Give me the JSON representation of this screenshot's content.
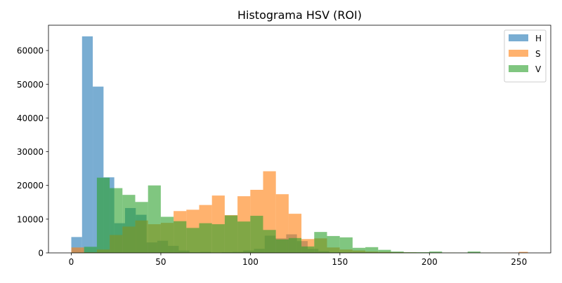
{
  "chart_data": {
    "type": "histogram",
    "title": "Histograma HSV (ROI)",
    "xlabel": "",
    "ylabel": "",
    "xlim": [
      -12.75,
      267.75
    ],
    "ylim": [
      0,
      67500
    ],
    "x_ticks": [
      0,
      50,
      100,
      150,
      200,
      250
    ],
    "y_ticks": [
      0,
      10000,
      20000,
      30000,
      40000,
      50000,
      60000
    ],
    "grid": false,
    "legend_position": "top-right",
    "bin_width": 7.14,
    "series": [
      {
        "name": "H",
        "color": "#1f77b4",
        "opacity": 0.6,
        "bins": [
          {
            "x0": 0,
            "x1": 6,
            "value": 4700
          },
          {
            "x0": 6,
            "x1": 12,
            "value": 64200
          },
          {
            "x0": 12,
            "x1": 18,
            "value": 49300
          },
          {
            "x0": 18,
            "x1": 24,
            "value": 22400
          },
          {
            "x0": 24,
            "x1": 30,
            "value": 8800
          },
          {
            "x0": 30,
            "x1": 36,
            "value": 13300
          },
          {
            "x0": 36,
            "x1": 42,
            "value": 11300
          },
          {
            "x0": 42,
            "x1": 48,
            "value": 3100
          },
          {
            "x0": 48,
            "x1": 54,
            "value": 3600
          },
          {
            "x0": 54,
            "x1": 60,
            "value": 2100
          },
          {
            "x0": 60,
            "x1": 66,
            "value": 700
          },
          {
            "x0": 66,
            "x1": 72,
            "value": 200
          },
          {
            "x0": 72,
            "x1": 78,
            "value": 300
          },
          {
            "x0": 78,
            "x1": 84,
            "value": 100
          },
          {
            "x0": 84,
            "x1": 90,
            "value": 200
          },
          {
            "x0": 90,
            "x1": 96,
            "value": 300
          },
          {
            "x0": 96,
            "x1": 102,
            "value": 700
          },
          {
            "x0": 102,
            "x1": 108,
            "value": 1200
          },
          {
            "x0": 108,
            "x1": 114,
            "value": 5100
          },
          {
            "x0": 114,
            "x1": 120,
            "value": 4300
          },
          {
            "x0": 120,
            "x1": 126,
            "value": 5500
          },
          {
            "x0": 126,
            "x1": 132,
            "value": 3500
          },
          {
            "x0": 132,
            "x1": 138,
            "value": 1200
          },
          {
            "x0": 138,
            "x1": 144,
            "value": 500
          },
          {
            "x0": 144,
            "x1": 150,
            "value": 200
          },
          {
            "x0": 150,
            "x1": 156,
            "value": 100
          },
          {
            "x0": 156,
            "x1": 162,
            "value": 100
          },
          {
            "x0": 162,
            "x1": 168,
            "value": 100
          },
          {
            "x0": 168,
            "x1": 174,
            "value": 50
          }
        ]
      },
      {
        "name": "S",
        "color": "#ff7f0e",
        "opacity": 0.6,
        "bins": [
          {
            "x0": 0,
            "x1": 7.14,
            "value": 1600
          },
          {
            "x0": 7.14,
            "x1": 14.28,
            "value": 200
          },
          {
            "x0": 14.28,
            "x1": 21.42,
            "value": 1000
          },
          {
            "x0": 21.42,
            "x1": 28.56,
            "value": 5300
          },
          {
            "x0": 28.56,
            "x1": 35.7,
            "value": 7800
          },
          {
            "x0": 35.7,
            "x1": 42.84,
            "value": 9600
          },
          {
            "x0": 42.84,
            "x1": 49.98,
            "value": 8500
          },
          {
            "x0": 49.98,
            "x1": 57.12,
            "value": 8900
          },
          {
            "x0": 57.12,
            "x1": 64.26,
            "value": 12400
          },
          {
            "x0": 64.26,
            "x1": 71.4,
            "value": 12800
          },
          {
            "x0": 71.4,
            "x1": 78.54,
            "value": 14200
          },
          {
            "x0": 78.54,
            "x1": 85.68,
            "value": 17000
          },
          {
            "x0": 85.68,
            "x1": 92.82,
            "value": 11200
          },
          {
            "x0": 92.82,
            "x1": 99.96,
            "value": 16800
          },
          {
            "x0": 99.96,
            "x1": 107.1,
            "value": 18700
          },
          {
            "x0": 107.1,
            "x1": 114.24,
            "value": 24200
          },
          {
            "x0": 114.24,
            "x1": 121.38,
            "value": 17400
          },
          {
            "x0": 121.38,
            "x1": 128.52,
            "value": 11600
          },
          {
            "x0": 128.52,
            "x1": 135.66,
            "value": 4100
          },
          {
            "x0": 135.66,
            "x1": 142.8,
            "value": 4300
          },
          {
            "x0": 142.8,
            "x1": 149.94,
            "value": 1600
          },
          {
            "x0": 149.94,
            "x1": 157.08,
            "value": 1000
          },
          {
            "x0": 157.08,
            "x1": 164.22,
            "value": 700
          },
          {
            "x0": 164.22,
            "x1": 171.36,
            "value": 400
          },
          {
            "x0": 171.36,
            "x1": 178.5,
            "value": 300
          },
          {
            "x0": 178.5,
            "x1": 185.64,
            "value": 200
          },
          {
            "x0": 185.64,
            "x1": 192.78,
            "value": 150
          },
          {
            "x0": 192.78,
            "x1": 199.92,
            "value": 100
          },
          {
            "x0": 199.92,
            "x1": 207.06,
            "value": 100
          },
          {
            "x0": 207.06,
            "x1": 214.2,
            "value": 100
          },
          {
            "x0": 214.2,
            "x1": 221.34,
            "value": 50
          },
          {
            "x0": 221.34,
            "x1": 228.48,
            "value": 50
          },
          {
            "x0": 228.48,
            "x1": 235.62,
            "value": 50
          },
          {
            "x0": 235.62,
            "x1": 242.76,
            "value": 50
          },
          {
            "x0": 242.76,
            "x1": 249.9,
            "value": 100
          },
          {
            "x0": 249.9,
            "x1": 255,
            "value": 300
          }
        ]
      },
      {
        "name": "V",
        "color": "#2ca02c",
        "opacity": 0.6,
        "bins": [
          {
            "x0": 0,
            "x1": 7.14,
            "value": 100
          },
          {
            "x0": 7.14,
            "x1": 14.28,
            "value": 1800
          },
          {
            "x0": 14.28,
            "x1": 21.42,
            "value": 22300
          },
          {
            "x0": 21.42,
            "x1": 28.56,
            "value": 19200
          },
          {
            "x0": 28.56,
            "x1": 35.7,
            "value": 17200
          },
          {
            "x0": 35.7,
            "x1": 42.84,
            "value": 15100
          },
          {
            "x0": 42.84,
            "x1": 49.98,
            "value": 20000
          },
          {
            "x0": 49.98,
            "x1": 57.12,
            "value": 10700
          },
          {
            "x0": 57.12,
            "x1": 64.26,
            "value": 9400
          },
          {
            "x0": 64.26,
            "x1": 71.4,
            "value": 7400
          },
          {
            "x0": 71.4,
            "x1": 78.54,
            "value": 8800
          },
          {
            "x0": 78.54,
            "x1": 85.68,
            "value": 8500
          },
          {
            "x0": 85.68,
            "x1": 92.82,
            "value": 11100
          },
          {
            "x0": 92.82,
            "x1": 99.96,
            "value": 9300
          },
          {
            "x0": 99.96,
            "x1": 107.1,
            "value": 11000
          },
          {
            "x0": 107.1,
            "x1": 114.24,
            "value": 6800
          },
          {
            "x0": 114.24,
            "x1": 121.38,
            "value": 4000
          },
          {
            "x0": 121.38,
            "x1": 128.52,
            "value": 4400
          },
          {
            "x0": 128.52,
            "x1": 135.66,
            "value": 1900
          },
          {
            "x0": 135.66,
            "x1": 142.8,
            "value": 6200
          },
          {
            "x0": 142.8,
            "x1": 149.94,
            "value": 5000
          },
          {
            "x0": 149.94,
            "x1": 157.08,
            "value": 4600
          },
          {
            "x0": 157.08,
            "x1": 164.22,
            "value": 1500
          },
          {
            "x0": 164.22,
            "x1": 171.36,
            "value": 1700
          },
          {
            "x0": 171.36,
            "x1": 178.5,
            "value": 900
          },
          {
            "x0": 178.5,
            "x1": 185.64,
            "value": 400
          },
          {
            "x0": 185.64,
            "x1": 192.78,
            "value": 200
          },
          {
            "x0": 192.78,
            "x1": 199.92,
            "value": 200
          },
          {
            "x0": 199.92,
            "x1": 207.06,
            "value": 400
          },
          {
            "x0": 207.06,
            "x1": 214.2,
            "value": 100
          },
          {
            "x0": 214.2,
            "x1": 221.34,
            "value": 100
          },
          {
            "x0": 221.34,
            "x1": 228.48,
            "value": 400
          },
          {
            "x0": 228.48,
            "x1": 235.62,
            "value": 50
          },
          {
            "x0": 235.62,
            "x1": 242.76,
            "value": 50
          }
        ]
      }
    ]
  }
}
